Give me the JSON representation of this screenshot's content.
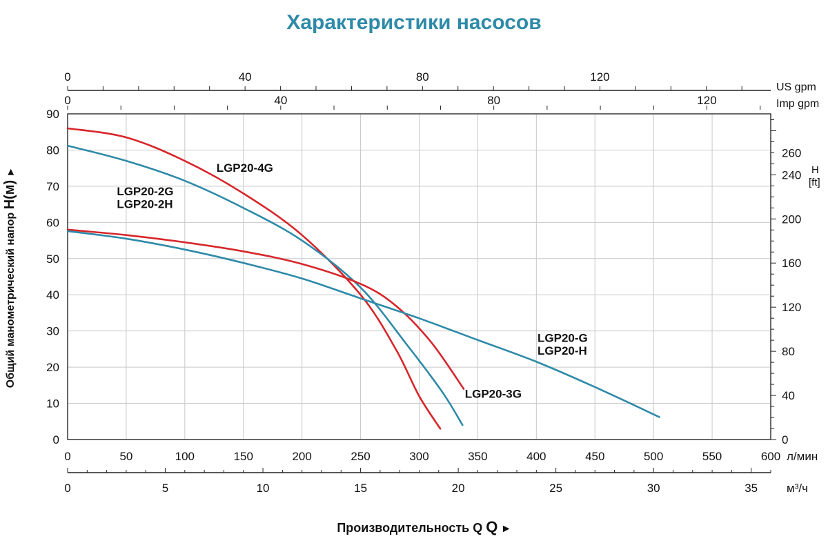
{
  "title": "Характеристики насосов",
  "title_color": "#2e8aa8",
  "chart_data": {
    "type": "line",
    "title": "Характеристики насосов",
    "xlabel": "Производительность Q",
    "ylabel": "Общий манометрический напор",
    "ylabel_symbol": "H(м)",
    "arrow_glyph": "►",
    "xlim": [
      0,
      600
    ],
    "ylim": [
      0,
      90
    ],
    "grid": true,
    "x_ticks": [
      0,
      50,
      100,
      150,
      200,
      250,
      300,
      350,
      400,
      450,
      500,
      550,
      600
    ],
    "x_unit": "л/мин",
    "y_ticks": [
      0,
      10,
      20,
      30,
      40,
      50,
      60,
      70,
      80,
      90
    ],
    "axes": {
      "m3h": {
        "unit": "м³/ч",
        "labels": [
          0,
          5,
          10,
          15,
          20,
          25,
          30,
          35
        ]
      },
      "us_gpm": {
        "unit": "US gpm",
        "labels": [
          0,
          40,
          80,
          120
        ]
      },
      "imp_gpm": {
        "unit": "Imp gpm",
        "labels": [
          0,
          40,
          80,
          120
        ]
      },
      "ft": {
        "unit_h": "H",
        "unit_ft": "[ft]",
        "labels": [
          0,
          40,
          80,
          120,
          160,
          200,
          240,
          260
        ]
      }
    },
    "series": [
      {
        "name": "LGP20-4G",
        "color": "#d7262b",
        "points": [
          [
            0,
            86
          ],
          [
            50,
            83.5
          ],
          [
            100,
            77
          ],
          [
            150,
            68
          ],
          [
            200,
            56.5
          ],
          [
            250,
            40
          ],
          [
            280,
            25
          ],
          [
            300,
            12
          ],
          [
            318,
            3
          ]
        ]
      },
      {
        "name": "LGP20-2G / LGP20-2H",
        "color": "#2e8aa8",
        "points": [
          [
            0,
            81.2
          ],
          [
            50,
            77
          ],
          [
            100,
            71.5
          ],
          [
            150,
            64
          ],
          [
            200,
            55
          ],
          [
            250,
            42
          ],
          [
            290,
            26
          ],
          [
            320,
            13
          ],
          [
            337,
            4
          ]
        ]
      },
      {
        "name": "LGP20-3G",
        "color": "#d7262b",
        "points": [
          [
            0,
            58
          ],
          [
            50,
            56.5
          ],
          [
            100,
            54.5
          ],
          [
            150,
            52
          ],
          [
            200,
            48.5
          ],
          [
            250,
            43
          ],
          [
            280,
            37
          ],
          [
            310,
            27
          ],
          [
            338,
            14
          ]
        ]
      },
      {
        "name": "LGP20-G / LGP20-H",
        "color": "#2e8aa8",
        "points": [
          [
            0,
            57.6
          ],
          [
            50,
            55.5
          ],
          [
            100,
            52.5
          ],
          [
            150,
            48.8
          ],
          [
            200,
            44.5
          ],
          [
            250,
            39
          ],
          [
            300,
            33.5
          ],
          [
            350,
            27.5
          ],
          [
            400,
            21.5
          ],
          [
            450,
            14.5
          ],
          [
            505,
            6.2
          ]
        ]
      }
    ],
    "labels": [
      {
        "text": "LGP20-4G",
        "x": 127,
        "y": 74
      },
      {
        "text": "LGP20-2G",
        "x": 42,
        "y": 67.5
      },
      {
        "text": "LGP20-2H",
        "x": 42,
        "y": 64
      },
      {
        "text": "LGP20-3G",
        "x": 339,
        "y": 11.5
      },
      {
        "text": "LGP20-G",
        "x": 401,
        "y": 27
      },
      {
        "text": "LGP20-H",
        "x": 401,
        "y": 23.5
      }
    ]
  }
}
